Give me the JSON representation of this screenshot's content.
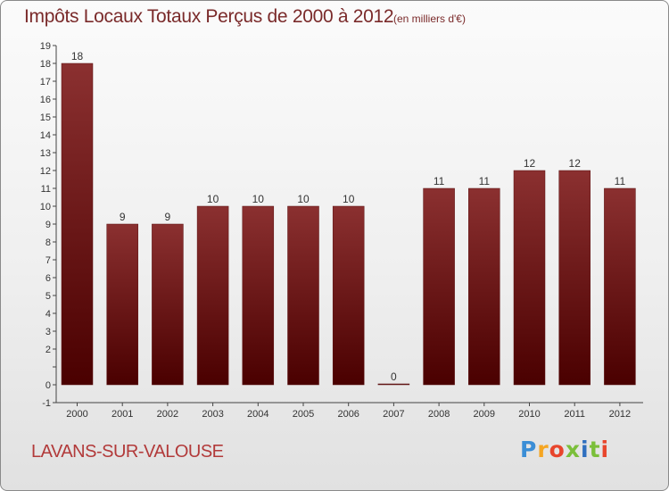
{
  "chart_data": {
    "type": "bar",
    "title": "Impôts Locaux Totaux Perçus de 2000 à 2012",
    "subtitle": "(en milliers d'€)",
    "categories": [
      "2000",
      "2001",
      "2002",
      "2003",
      "2004",
      "2005",
      "2006",
      "2007",
      "2008",
      "2009",
      "2010",
      "2011",
      "2012"
    ],
    "values": [
      18,
      9,
      9,
      10,
      10,
      10,
      10,
      0,
      11,
      11,
      12,
      12,
      11
    ],
    "data_labels": [
      "18",
      "9",
      "9",
      "10",
      "10",
      "10",
      "10",
      "0",
      "11",
      "11",
      "12",
      "12",
      "11"
    ],
    "ylim": [
      -1,
      19
    ],
    "yticks": [
      -1,
      0,
      1,
      2,
      3,
      4,
      5,
      6,
      7,
      8,
      9,
      10,
      11,
      12,
      13,
      14,
      15,
      16,
      17,
      18,
      19
    ],
    "ytick_labels": [
      "-1",
      "0",
      "",
      "2",
      "3",
      "4",
      "5",
      "6",
      "7",
      "8",
      "9",
      "10",
      "11",
      "12",
      "13",
      "14",
      "15",
      "16",
      "17",
      "18",
      "19"
    ],
    "xlabel": "",
    "ylabel": "",
    "grid": false,
    "colors": {
      "bar_top": "#8b3030",
      "bar_bottom": "#4a0000",
      "title": "#7a2a2a"
    }
  },
  "footer": {
    "commune": "LAVANS-SUR-VALOUSE",
    "logo_letters": [
      "P",
      "r",
      "o",
      "x",
      "i",
      "t",
      "i"
    ],
    "logo_colors": [
      "#3b8ed6",
      "#f5a623",
      "#e8452c",
      "#7bbf3a",
      "#2f6fbf",
      "#7bbf3a",
      "#e8452c"
    ]
  }
}
